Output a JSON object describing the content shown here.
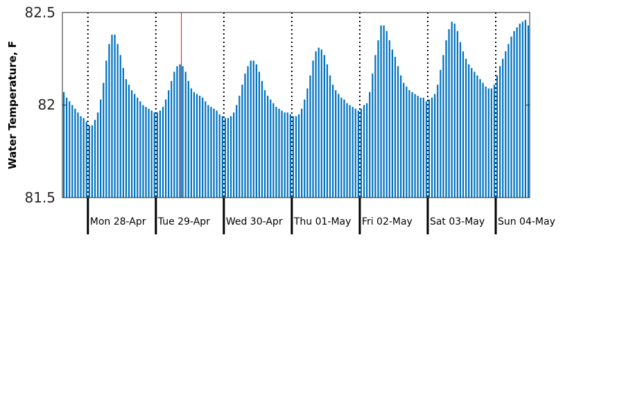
{
  "chart_data": {
    "type": "bar",
    "title": "",
    "xlabel": "",
    "ylabel": "Water Temperature, F",
    "ylim": [
      81.5,
      82.5
    ],
    "yticks": [
      "81.5",
      "82",
      "82.5"
    ],
    "grid": false,
    "legend": "none",
    "bar_color": "#0072bd",
    "marker_color": "#ff0000",
    "marker_hour": 33,
    "start_hour_offset": -9,
    "day_labels": [
      "Mon 28-Apr",
      "Tue 29-Apr",
      "Wed 30-Apr",
      "Thu 01-May",
      "Fri 02-May",
      "Sat 03-May",
      "Sun 04-May"
    ],
    "series": [
      {
        "values": [
          82.07,
          82.04,
          82.02,
          82.0,
          81.98,
          81.96,
          81.94,
          81.93,
          81.91,
          81.89,
          81.89,
          81.92,
          81.96,
          82.03,
          82.12,
          82.24,
          82.33,
          82.38,
          82.38,
          82.33,
          82.27,
          82.2,
          82.14,
          82.11,
          82.08,
          82.06,
          82.04,
          82.02,
          82.0,
          81.99,
          81.98,
          81.97,
          81.96,
          81.96,
          81.97,
          81.99,
          82.03,
          82.08,
          82.13,
          82.18,
          82.21,
          82.22,
          82.21,
          82.18,
          82.13,
          82.09,
          82.07,
          82.06,
          82.05,
          82.04,
          82.02,
          82.0,
          81.99,
          81.98,
          81.97,
          81.95,
          81.94,
          81.93,
          81.93,
          81.94,
          81.96,
          82.0,
          82.05,
          82.11,
          82.17,
          82.21,
          82.24,
          82.24,
          82.22,
          82.18,
          82.13,
          82.08,
          82.05,
          82.03,
          82.01,
          81.99,
          81.98,
          81.97,
          81.96,
          81.96,
          81.95,
          81.94,
          81.94,
          81.95,
          81.98,
          82.03,
          82.09,
          82.16,
          82.24,
          82.29,
          82.31,
          82.3,
          82.27,
          82.22,
          82.16,
          82.11,
          82.08,
          82.06,
          82.04,
          82.03,
          82.01,
          82.0,
          81.99,
          81.98,
          81.97,
          81.98,
          82.0,
          82.01,
          82.07,
          82.17,
          82.27,
          82.35,
          82.43,
          82.43,
          82.4,
          82.35,
          82.3,
          82.26,
          82.21,
          82.16,
          82.12,
          82.1,
          82.08,
          82.07,
          82.06,
          82.05,
          82.04,
          82.04,
          82.02,
          82.03,
          82.04,
          82.06,
          82.11,
          82.19,
          82.27,
          82.35,
          82.41,
          82.45,
          82.44,
          82.4,
          82.34,
          82.29,
          82.25,
          82.22,
          82.2,
          82.18,
          82.16,
          82.14,
          82.12,
          82.1,
          82.09,
          82.09,
          82.11,
          82.16,
          82.21,
          82.25,
          82.29,
          82.33,
          82.37,
          82.4,
          82.42,
          82.44,
          82.45,
          82.46,
          82.43
        ]
      }
    ]
  }
}
